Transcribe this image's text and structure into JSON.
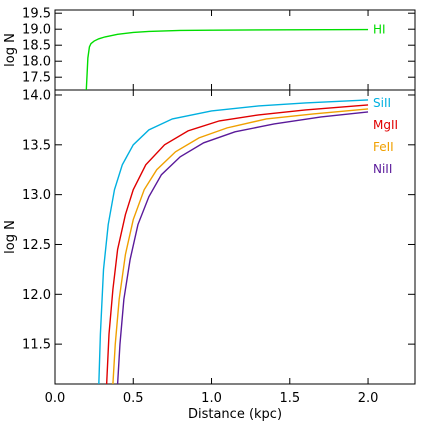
{
  "chart_data": [
    {
      "type": "line",
      "ylabel": "log N",
      "xlim": [
        0.0,
        2.3
      ],
      "ylim": [
        17.1,
        19.6
      ],
      "yticks": [
        "17.5",
        "18.0",
        "18.5",
        "19.0",
        "19.5"
      ],
      "grid": false,
      "series": [
        {
          "name": "HI",
          "color": "#00dd00",
          "x": [
            0.2,
            0.205,
            0.21,
            0.22,
            0.23,
            0.25,
            0.28,
            0.32,
            0.4,
            0.5,
            0.6,
            0.8,
            1.0,
            1.5,
            2.0
          ],
          "y": [
            17.1,
            17.6,
            18.1,
            18.45,
            18.55,
            18.63,
            18.7,
            18.76,
            18.84,
            18.9,
            18.93,
            18.96,
            18.97,
            18.98,
            18.99
          ]
        }
      ]
    },
    {
      "type": "line",
      "xlabel": "Distance (kpc)",
      "ylabel": "log N",
      "xlim": [
        0.0,
        2.3
      ],
      "ylim": [
        11.1,
        14.05
      ],
      "xticks": [
        "0.0",
        "0.5",
        "1.0",
        "1.5",
        "2.0"
      ],
      "yticks": [
        "11.5",
        "12.0",
        "12.5",
        "13.0",
        "13.5",
        "14.0"
      ],
      "grid": false,
      "legend_placement": "top-right",
      "series": [
        {
          "name": "SiII",
          "color": "#00b0e0",
          "x": [
            0.28,
            0.29,
            0.31,
            0.34,
            0.38,
            0.43,
            0.5,
            0.6,
            0.75,
            1.0,
            1.3,
            1.6,
            2.0
          ],
          "y": [
            11.1,
            11.6,
            12.25,
            12.7,
            13.05,
            13.3,
            13.5,
            13.65,
            13.76,
            13.84,
            13.89,
            13.92,
            13.95
          ]
        },
        {
          "name": "MgII",
          "color": "#e00000",
          "x": [
            0.33,
            0.345,
            0.37,
            0.4,
            0.45,
            0.5,
            0.58,
            0.7,
            0.85,
            1.05,
            1.3,
            1.6,
            2.0
          ],
          "y": [
            11.1,
            11.6,
            12.05,
            12.45,
            12.8,
            13.05,
            13.3,
            13.5,
            13.64,
            13.74,
            13.8,
            13.85,
            13.9
          ]
        },
        {
          "name": "FeII",
          "color": "#f0a000",
          "x": [
            0.37,
            0.385,
            0.41,
            0.45,
            0.5,
            0.57,
            0.65,
            0.77,
            0.92,
            1.1,
            1.35,
            1.65,
            2.0
          ],
          "y": [
            11.1,
            11.5,
            11.95,
            12.4,
            12.75,
            13.05,
            13.25,
            13.43,
            13.57,
            13.67,
            13.76,
            13.81,
            13.86
          ]
        },
        {
          "name": "NiII",
          "color": "#5a1a9a",
          "x": [
            0.4,
            0.415,
            0.44,
            0.48,
            0.53,
            0.6,
            0.68,
            0.8,
            0.95,
            1.15,
            1.4,
            1.7,
            2.0
          ],
          "y": [
            11.1,
            11.5,
            11.95,
            12.35,
            12.7,
            12.98,
            13.2,
            13.38,
            13.52,
            13.63,
            13.71,
            13.78,
            13.83
          ]
        }
      ]
    }
  ]
}
